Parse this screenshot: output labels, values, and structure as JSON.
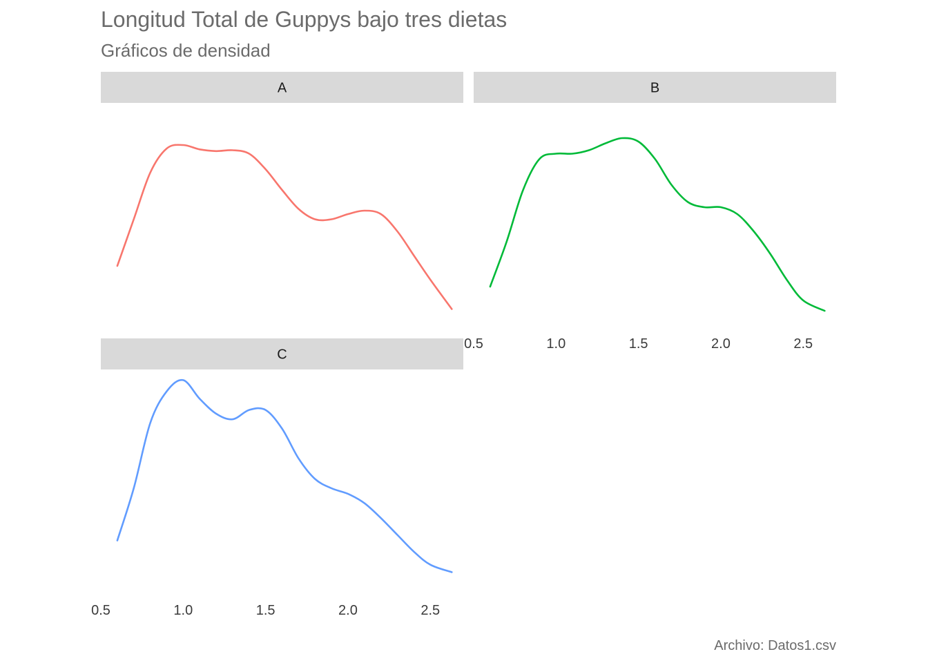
{
  "chart_data": {
    "type": "line",
    "title": "Longitud Total de Guppys bajo tres dietas",
    "subtitle": "Gráficos de densidad",
    "caption": "Archivo: Datos1.csv",
    "xlim": [
      0.5,
      2.7
    ],
    "x_ticks": [
      "0.5",
      "1.0",
      "1.5",
      "2.0",
      "2.5"
    ],
    "grid": false,
    "legend": "none",
    "facets": [
      {
        "name": "A",
        "color": "#F8766D",
        "x": [
          0.6,
          0.7,
          0.8,
          0.9,
          1.0,
          1.1,
          1.2,
          1.3,
          1.4,
          1.5,
          1.6,
          1.7,
          1.8,
          1.9,
          2.0,
          2.1,
          2.2,
          2.3,
          2.4,
          2.5,
          2.63
        ],
        "value": [
          0.28,
          0.55,
          0.82,
          0.96,
          0.98,
          0.955,
          0.945,
          0.95,
          0.93,
          0.84,
          0.72,
          0.61,
          0.55,
          0.55,
          0.58,
          0.6,
          0.58,
          0.48,
          0.34,
          0.2,
          0.03
        ]
      },
      {
        "name": "B",
        "color": "#00BA38",
        "x": [
          0.6,
          0.7,
          0.8,
          0.9,
          1.0,
          1.1,
          1.2,
          1.3,
          1.4,
          1.5,
          1.6,
          1.7,
          1.8,
          1.9,
          2.0,
          2.1,
          2.2,
          2.3,
          2.4,
          2.5,
          2.63
        ],
        "value": [
          0.16,
          0.42,
          0.72,
          0.9,
          0.93,
          0.93,
          0.95,
          0.99,
          1.02,
          1.0,
          0.9,
          0.75,
          0.65,
          0.62,
          0.62,
          0.58,
          0.48,
          0.35,
          0.2,
          0.08,
          0.02
        ]
      },
      {
        "name": "C",
        "color": "#619CFF",
        "x": [
          0.6,
          0.7,
          0.8,
          0.9,
          1.0,
          1.1,
          1.2,
          1.3,
          1.4,
          1.5,
          1.6,
          1.7,
          1.8,
          1.9,
          2.0,
          2.1,
          2.2,
          2.3,
          2.4,
          2.5,
          2.63
        ],
        "value": [
          0.22,
          0.5,
          0.85,
          1.02,
          1.08,
          0.98,
          0.9,
          0.87,
          0.92,
          0.92,
          0.82,
          0.66,
          0.55,
          0.5,
          0.47,
          0.42,
          0.34,
          0.25,
          0.16,
          0.09,
          0.05
        ]
      }
    ]
  }
}
